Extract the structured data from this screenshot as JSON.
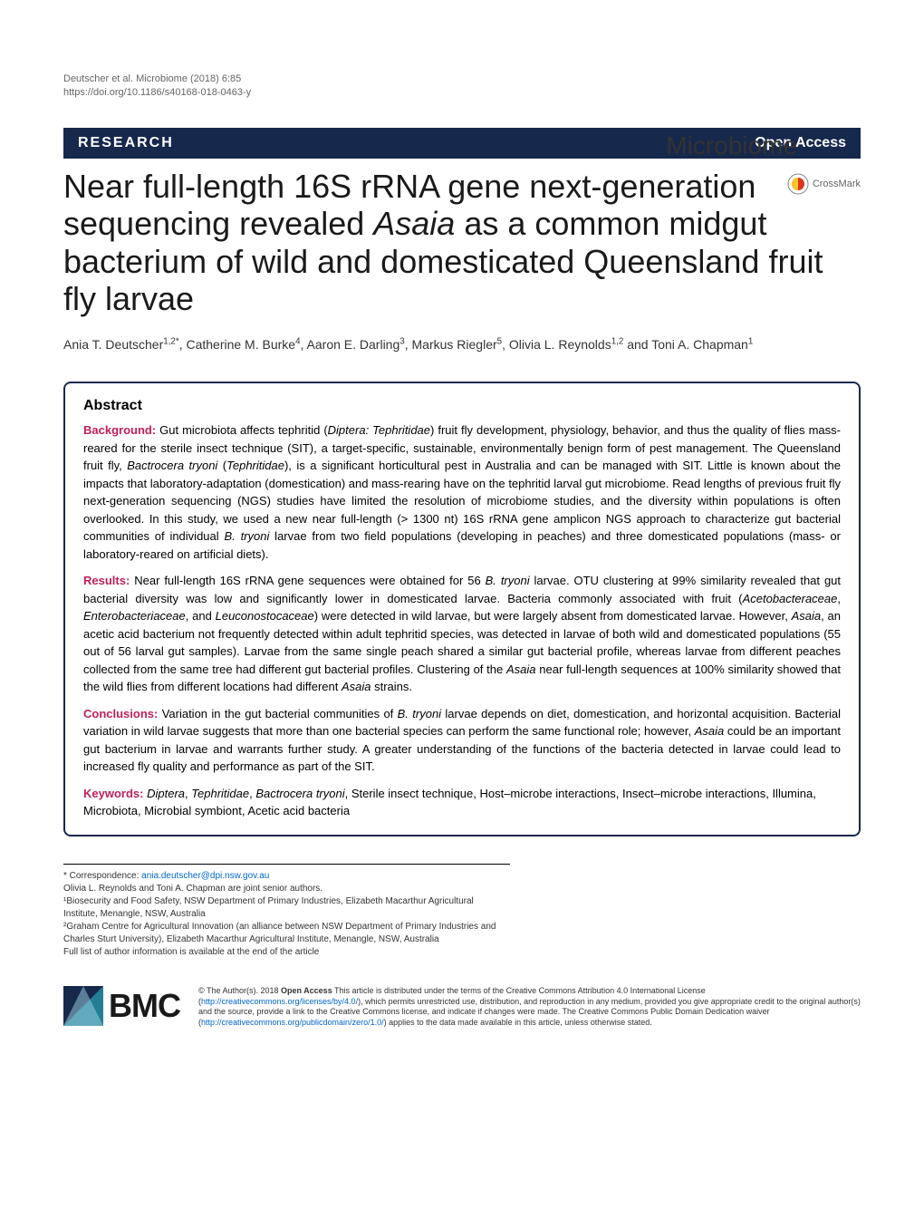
{
  "header": {
    "citation": "Deutscher et al. Microbiome  (2018) 6:85",
    "doi": "https://doi.org/10.1186/s40168-018-0463-y",
    "journal_brand": "Microbiome"
  },
  "category_bar": {
    "label": "RESEARCH",
    "open_access": "Open Access",
    "bg_color": "#16284b",
    "text_color": "#ffffff"
  },
  "crossmark": {
    "label": "CrossMark"
  },
  "title": {
    "html": "Near full-length 16S rRNA gene next-generation sequencing revealed <span class=\"italic\">Asaia</span> as a common midgut bacterium of wild and domesticated Queensland fruit fly larvae"
  },
  "authors": {
    "html": "Ania T. Deutscher<sup>1,2*</sup>, Catherine M. Burke<sup>4</sup>, Aaron E. Darling<sup>3</sup>, Markus Riegler<sup>5</sup>, Olivia L. Reynolds<sup>1,2</sup> and Toni A. Chapman<sup>1</sup>"
  },
  "abstract": {
    "heading": "Abstract",
    "label_color": "#c01f5c",
    "border_color": "#16284b",
    "background": {
      "label": "Background:",
      "html": "Gut microbiota affects tephritid (<span class=\"italic\">Diptera: Tephritidae</span>) fruit fly development, physiology, behavior, and thus the quality of flies mass-reared for the sterile insect technique (SIT), a target-specific, sustainable, environmentally benign form of pest management. The Queensland fruit fly, <span class=\"italic\">Bactrocera tryoni</span> (<span class=\"italic\">Tephritidae</span>), is a significant horticultural pest in Australia and can be managed with SIT. Little is known about the impacts that laboratory-adaptation (domestication) and mass-rearing have on the tephritid larval gut microbiome. Read lengths of previous fruit fly next-generation sequencing (NGS) studies have limited the resolution of microbiome studies, and the diversity within populations is often overlooked. In this study, we used a new near full-length (&gt; 1300 nt) 16S rRNA gene amplicon NGS approach to characterize gut bacterial communities of individual <span class=\"italic\">B. tryoni</span> larvae from two field populations (developing in peaches) and three domesticated populations (mass- or laboratory-reared on artificial diets)."
    },
    "results": {
      "label": "Results:",
      "html": "Near full-length 16S rRNA gene sequences were obtained for 56 <span class=\"italic\">B. tryoni</span> larvae. OTU clustering at 99% similarity revealed that gut bacterial diversity was low and significantly lower in domesticated larvae. Bacteria commonly associated with fruit (<span class=\"italic\">Acetobacteraceae</span>, <span class=\"italic\">Enterobacteriaceae</span>, and <span class=\"italic\">Leuconostocaceae</span>) were detected in wild larvae, but were largely absent from domesticated larvae. However, <span class=\"italic\">Asaia</span>, an acetic acid bacterium not frequently detected within adult tephritid species, was detected in larvae of both wild and domesticated populations (55 out of 56 larval gut samples). Larvae from the same single peach shared a similar gut bacterial profile, whereas larvae from different peaches collected from the same tree had different gut bacterial profiles. Clustering of the <span class=\"italic\">Asaia</span> near full-length sequences at 100% similarity showed that the wild flies from different locations had different <span class=\"italic\">Asaia</span> strains."
    },
    "conclusions": {
      "label": "Conclusions:",
      "html": "Variation in the gut bacterial communities of <span class=\"italic\">B. tryoni</span> larvae depends on diet, domestication, and horizontal acquisition. Bacterial variation in wild larvae suggests that more than one bacterial species can perform the same functional role; however, <span class=\"italic\">Asaia</span> could be an important gut bacterium in larvae and warrants further study. A greater understanding of the functions of the bacteria detected in larvae could lead to increased fly quality and performance as part of the SIT."
    },
    "keywords": {
      "label": "Keywords:",
      "html": "<span class=\"italic\">Diptera</span>, <span class=\"italic\">Tephritidae</span>, <span class=\"italic\">Bactrocera tryoni</span>, Sterile insect technique, Host–microbe interactions, Insect–microbe interactions, Illumina, Microbiota, Microbial symbiont, Acetic acid bacteria"
    }
  },
  "footer": {
    "correspondence_label": "* Correspondence: ",
    "correspondence_email": "ania.deutscher@dpi.nsw.gov.au",
    "joint_senior": "Olivia L. Reynolds and Toni A. Chapman are joint senior authors.",
    "affil1": "¹Biosecurity and Food Safety, NSW Department of Primary Industries, Elizabeth Macarthur Agricultural Institute, Menangle, NSW, Australia",
    "affil2": "²Graham Centre for Agricultural Innovation (an alliance between NSW Department of Primary Industries and Charles Sturt University), Elizabeth Macarthur Agricultural Institute, Menangle, NSW, Australia",
    "full_list": "Full list of author information is available at the end of the article"
  },
  "publisher": {
    "logo_text": "BMC",
    "logo_bg": "#16284b",
    "license_html": "© The Author(s). 2018 <span class=\"bold\">Open Access</span> This article is distributed under the terms of the Creative Commons Attribution 4.0 International License (<a href=\"#\">http://creativecommons.org/licenses/by/4.0/</a>), which permits unrestricted use, distribution, and reproduction in any medium, provided you give appropriate credit to the original author(s) and the source, provide a link to the Creative Commons license, and indicate if changes were made. The Creative Commons Public Domain Dedication waiver (<a href=\"#\">http://creativecommons.org/publicdomain/zero/1.0/</a>) applies to the data made available in this article, unless otherwise stated."
  }
}
